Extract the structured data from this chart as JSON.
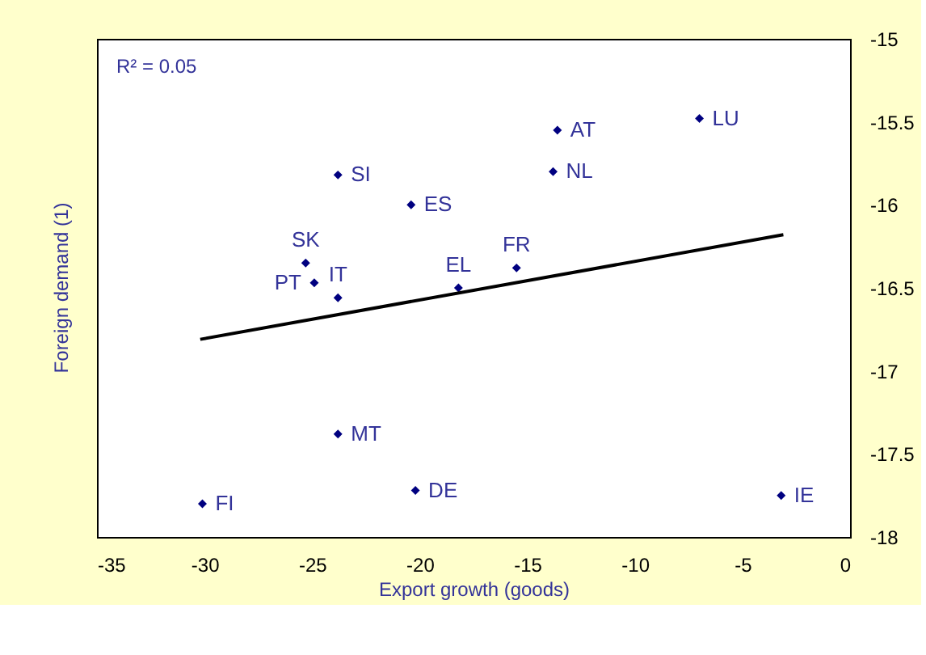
{
  "chart_data": {
    "type": "scatter",
    "xlabel": "Export growth (goods)",
    "ylabel": "Foreign demand (1)",
    "xlim": [
      -35,
      0
    ],
    "xticks": [
      -35,
      -30,
      -25,
      -20,
      -15,
      -10,
      -5,
      0
    ],
    "ylim": [
      -18,
      -15
    ],
    "yticks": [
      -18,
      -17.5,
      -17,
      -16.5,
      -16,
      -15.5,
      -15
    ],
    "grid": false,
    "series": [
      {
        "color": "#000080",
        "marker": "diamond",
        "x": [
          -23.8,
          -20.4,
          -25.3,
          -24.9,
          -23.8,
          -18.2,
          -15.5,
          -13.6,
          -13.8,
          -7.0,
          -23.8,
          -30.1,
          -20.2,
          -3.2
        ],
        "values": [
          -15.82,
          -16.0,
          -16.35,
          -16.47,
          -16.56,
          -16.5,
          -16.38,
          -15.55,
          -15.8,
          -15.48,
          -17.38,
          -17.8,
          -17.72,
          -17.75
        ]
      },
      {
        "type": "line",
        "color": "#000000",
        "marker": "none",
        "x": [
          -30.2,
          -3.1
        ],
        "values": [
          -16.81,
          -16.18
        ]
      }
    ],
    "annotations": [
      {
        "text": "SI",
        "x": -23.8,
        "y": -15.82
      },
      {
        "text": "ES",
        "x": -20.4,
        "y": -16.0
      },
      {
        "text": "SK",
        "x": -25.3,
        "y": -16.35
      },
      {
        "text": "PT",
        "x": -24.9,
        "y": -16.47
      },
      {
        "text": "IT",
        "x": -23.8,
        "y": -16.56
      },
      {
        "text": "EL",
        "x": -18.2,
        "y": -16.5
      },
      {
        "text": "FR",
        "x": -15.5,
        "y": -16.38
      },
      {
        "text": "AT",
        "x": -13.6,
        "y": -15.55
      },
      {
        "text": "NL",
        "x": -13.8,
        "y": -15.8
      },
      {
        "text": "LU",
        "x": -7.0,
        "y": -15.48
      },
      {
        "text": "MT",
        "x": -23.8,
        "y": -17.38
      },
      {
        "text": "FI",
        "x": -30.1,
        "y": -17.8
      },
      {
        "text": "DE",
        "x": -20.2,
        "y": -17.72
      },
      {
        "text": "IE",
        "x": -3.2,
        "y": -17.75
      },
      "R² = 0.05"
    ]
  }
}
